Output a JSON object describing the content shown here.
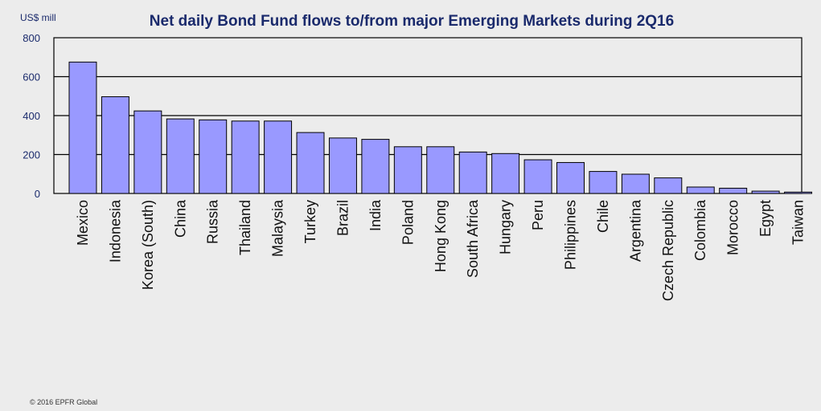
{
  "chart_data": {
    "type": "bar",
    "title": "Net daily Bond Fund flows to/from major Emerging Markets during 2Q16",
    "ylabel": "US$ mill",
    "xlabel": "",
    "ylim": [
      0,
      800
    ],
    "yticks": [
      "800",
      "600",
      "400",
      "200",
      "0"
    ],
    "grid": true,
    "categories": [
      "Mexico",
      "Indonesia",
      "Korea (South)",
      "China",
      "Russia",
      "Thailand",
      "Malaysia",
      "Turkey",
      "Brazil",
      "India",
      "Poland",
      "Hong Kong",
      "South Africa",
      "Hungary",
      "Peru",
      "Philippines",
      "Chile",
      "Argentina",
      "Czech Republic",
      "Colombia",
      "Morocco",
      "Egypt",
      "Taiwan"
    ],
    "values": [
      675,
      497,
      424,
      383,
      378,
      372,
      372,
      313,
      285,
      278,
      240,
      240,
      213,
      205,
      173,
      159,
      113,
      99,
      80,
      33,
      27,
      12,
      7
    ],
    "colors": {
      "bar": "#9999ff",
      "bar_stroke": "#000000",
      "background": "#ececec",
      "title": "#1a2a6c"
    }
  },
  "footer": {
    "copyright": "© 2016 EPFR Global"
  }
}
